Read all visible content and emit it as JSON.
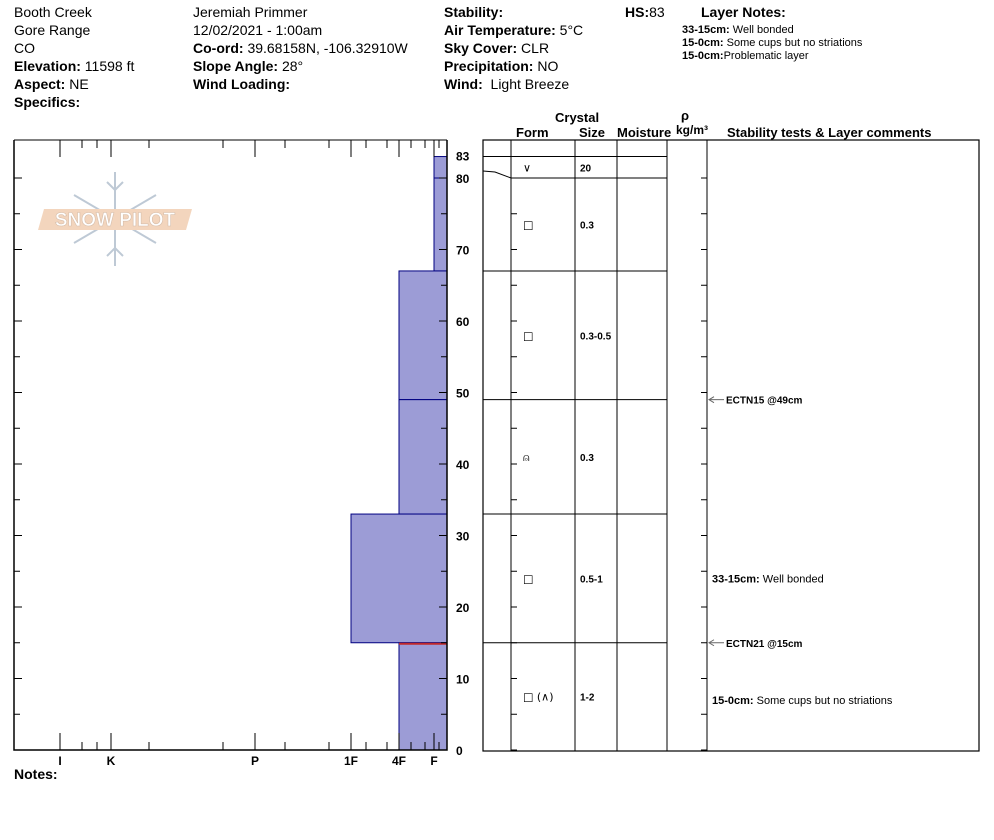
{
  "header": {
    "location": "Booth Creek",
    "range": "Gore Range",
    "state": "CO",
    "elevation_label": "Elevation:",
    "elevation": "11598 ft",
    "aspect_label": "Aspect:",
    "aspect": "NE",
    "specifics_label": "Specifics:",
    "observer": "Jeremiah Primmer",
    "datetime": "12/02/2021 - 1:00am",
    "coord_label": "Co-ord:",
    "coord": "39.68158N, -106.32910W",
    "slope_label": "Slope Angle:",
    "slope": "28°",
    "wind_loading_label": "Wind Loading:",
    "stability_label": "Stability:",
    "air_temp_label": "Air Temperature:",
    "air_temp": "5°C",
    "sky_label": "Sky Cover:",
    "sky": "CLR",
    "precip_label": "Precipitation:",
    "precip": "NO",
    "wind_label": "Wind:",
    "wind": "Light Breeze",
    "hs_label": "HS:",
    "hs": "83",
    "layer_notes_label": "Layer Notes:",
    "layer_notes": [
      {
        "range": "33-15cm:",
        "text": "Well bonded"
      },
      {
        "range": "15-0cm:",
        "text": " Some cups but no striations"
      },
      {
        "range": "15-0cm:",
        "text": "Problematic layer"
      }
    ]
  },
  "table_headers": {
    "crystal": "Crystal",
    "form": "Form",
    "size": "Size",
    "moisture": "Moisture",
    "rho": "ρ",
    "density": "kg/m³",
    "comments": "Stability tests & Layer comments"
  },
  "notes_label": "Notes:",
  "logo_text": "SNOW PILOT",
  "colors": {
    "layer_fill": "#9c9cd6",
    "layer_stroke": "#000080",
    "weak_layer": "#c0282a"
  },
  "chart_data": {
    "type": "bar",
    "depth_axis": {
      "min": 0,
      "max": 83,
      "ticks": [
        0,
        10,
        20,
        30,
        40,
        50,
        60,
        70,
        80,
        83
      ]
    },
    "hardness_axis": {
      "ticks": [
        "I",
        "K",
        "P",
        "1F",
        "4F",
        "F"
      ]
    },
    "layers": [
      {
        "top": 83,
        "bottom": 80,
        "hardness": "F",
        "form": "∨",
        "size": "20"
      },
      {
        "top": 80,
        "bottom": 67,
        "hardness": "F",
        "form": "□",
        "size": "0.3"
      },
      {
        "top": 67,
        "bottom": 49,
        "hardness": "4F",
        "form": "□",
        "size": "0.3-0.5"
      },
      {
        "top": 49,
        "bottom": 33,
        "hardness": "4F",
        "form": "⍝",
        "size": "0.3"
      },
      {
        "top": 33,
        "bottom": 15,
        "hardness": "1F",
        "form": "□",
        "size": "0.5-1"
      },
      {
        "top": 15,
        "bottom": 0,
        "hardness": "4F",
        "form": "□ (∧)",
        "size": "1-2"
      }
    ],
    "weak_layer_depth": 15,
    "stability_tests": [
      {
        "depth": 49,
        "label": "ECTN15 @49cm"
      },
      {
        "depth": 15,
        "label": "ECTN21 @15cm"
      }
    ],
    "layer_comments": [
      {
        "depth": 24,
        "range": "33-15cm:",
        "text": "Well bonded"
      },
      {
        "depth": 7,
        "range": "15-0cm:",
        "text": "Some cups but no striations"
      }
    ]
  }
}
